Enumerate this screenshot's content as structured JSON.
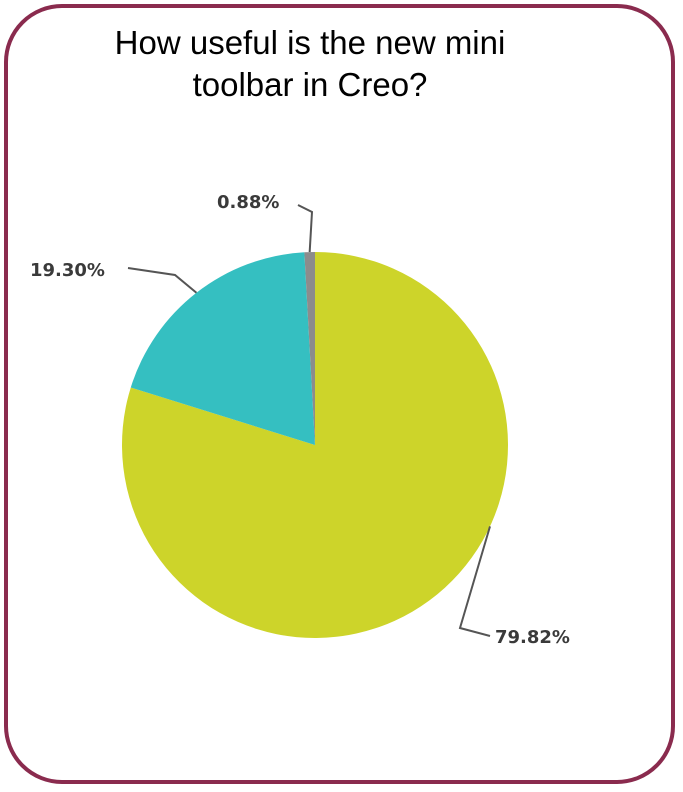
{
  "chart_data": {
    "type": "pie",
    "title": "How useful is the new mini toolbar in Creo?",
    "slices": [
      {
        "value": 79.82,
        "label": "79.82%",
        "color": "#cdd42a"
      },
      {
        "value": 19.3,
        "label": "19.30%",
        "color": "#35bfc1"
      },
      {
        "value": 0.88,
        "label": "0.88%",
        "color": "#8c8c8c"
      }
    ],
    "legend": "none"
  },
  "colors": {
    "frame_border": "#8a2b4e",
    "leader_line": "#555555"
  }
}
